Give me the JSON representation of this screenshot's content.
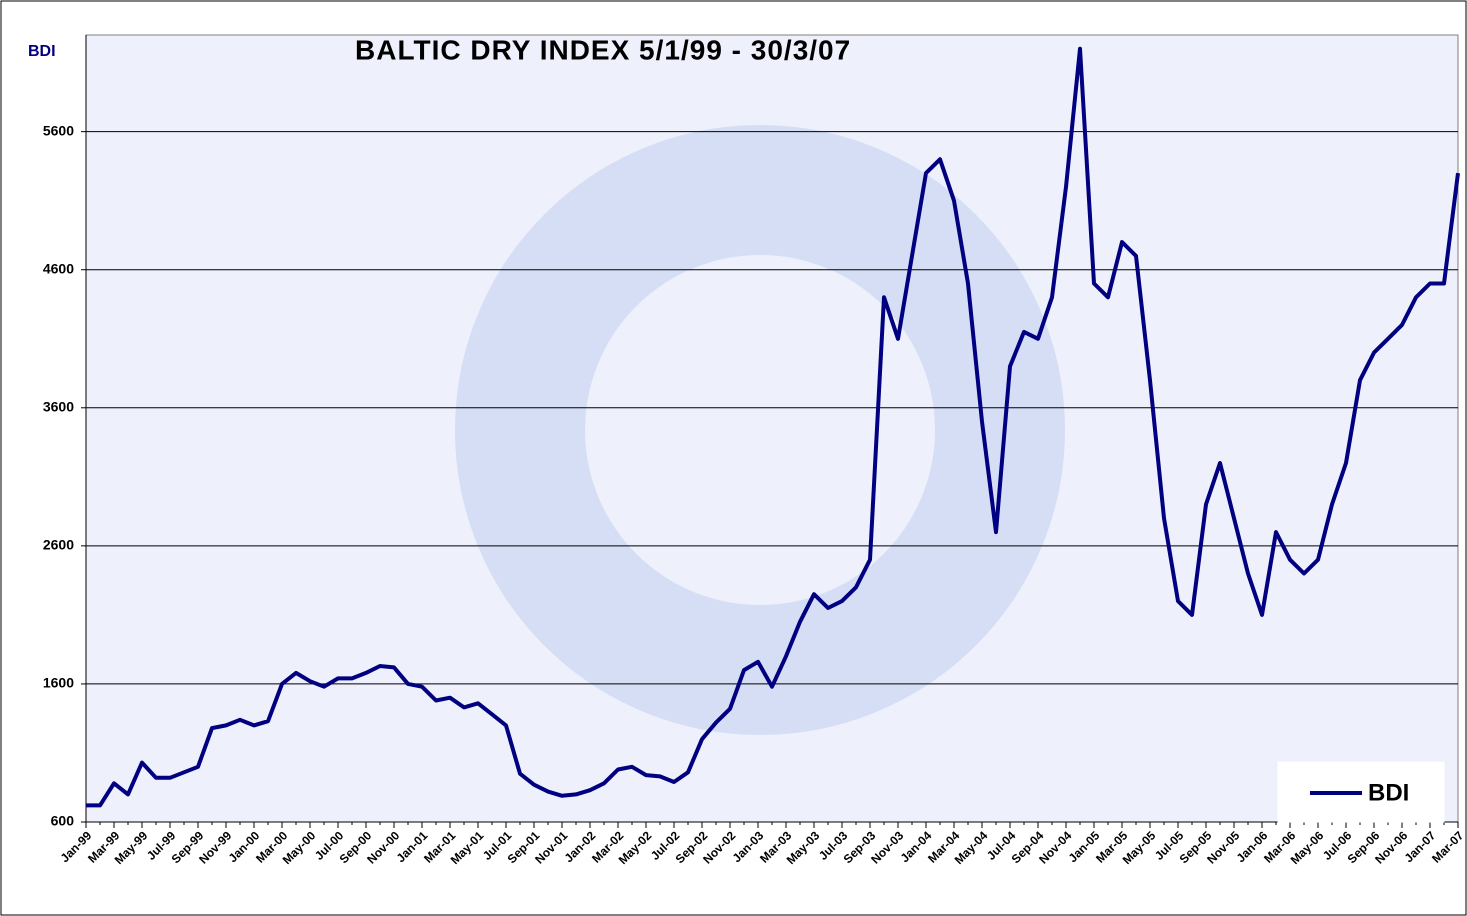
{
  "chart_data": {
    "type": "line",
    "title": "BALTIC DRY INDEX 5/1/99 - 30/3/07",
    "y_label": "BDI",
    "categories": [
      "Jan-99",
      null,
      "Mar-99",
      null,
      "May-99",
      null,
      "Jul-99",
      null,
      "Sep-99",
      null,
      "Nov-99",
      null,
      "Jan-00",
      null,
      "Mar-00",
      null,
      "May-00",
      null,
      "Jul-00",
      null,
      "Sep-00",
      null,
      "Nov-00",
      null,
      "Jan-01",
      null,
      "Mar-01",
      null,
      "May-01",
      null,
      "Jul-01",
      null,
      "Sep-01",
      null,
      "Nov-01",
      null,
      "Jan-02",
      null,
      "Mar-02",
      null,
      "May-02",
      null,
      "Jul-02",
      null,
      "Sep-02",
      null,
      "Nov-02",
      null,
      "Jan-03",
      null,
      "Mar-03",
      null,
      "May-03",
      null,
      "Jul-03",
      null,
      "Sep-03",
      null,
      "Nov-03",
      null,
      "Jan-04",
      null,
      "Mar-04",
      null,
      "May-04",
      null,
      "Jul-04",
      null,
      "Sep-04",
      null,
      "Nov-04",
      null,
      "Jan-05",
      null,
      "Mar-05",
      null,
      "May-05",
      null,
      "Jul-05",
      null,
      "Sep-05",
      null,
      "Nov-05",
      null,
      "Jan-06",
      null,
      "Mar-06",
      null,
      "May-06",
      null,
      "Jul-06",
      null,
      "Sep-06",
      null,
      "Nov-06",
      null,
      "Jan-07",
      null,
      "Mar-07"
    ],
    "series": [
      {
        "name": "BDI",
        "color": "#000080",
        "values": [
          720,
          720,
          880,
          800,
          1030,
          920,
          920,
          960,
          1000,
          1280,
          1300,
          1340,
          1300,
          1330,
          1600,
          1680,
          1620,
          1580,
          1640,
          1640,
          1680,
          1730,
          1720,
          1600,
          1580,
          1480,
          1500,
          1430,
          1460,
          1380,
          1300,
          950,
          870,
          820,
          790,
          800,
          830,
          880,
          980,
          1000,
          940,
          930,
          890,
          960,
          1200,
          1320,
          1420,
          1700,
          1760,
          1580,
          1800,
          2050,
          2250,
          2150,
          2200,
          2300,
          2500,
          4400,
          4100,
          4700,
          5300,
          5400,
          5100,
          4500,
          3500,
          2700,
          3900,
          4150,
          4100,
          4400,
          5200,
          6200,
          4500,
          4400,
          4800,
          4700,
          3800,
          2800,
          2200,
          2100,
          2900,
          3200,
          2800,
          2400,
          2100,
          2700,
          2500,
          2400,
          2500,
          2900,
          3200,
          3800,
          4000,
          4100,
          4200,
          4400,
          4500,
          4500,
          5300
        ]
      }
    ],
    "ylim": [
      600,
      6300
    ],
    "yticks": [
      600,
      1600,
      2600,
      3600,
      4600,
      5600
    ],
    "grid": true,
    "legend": "lower right"
  }
}
